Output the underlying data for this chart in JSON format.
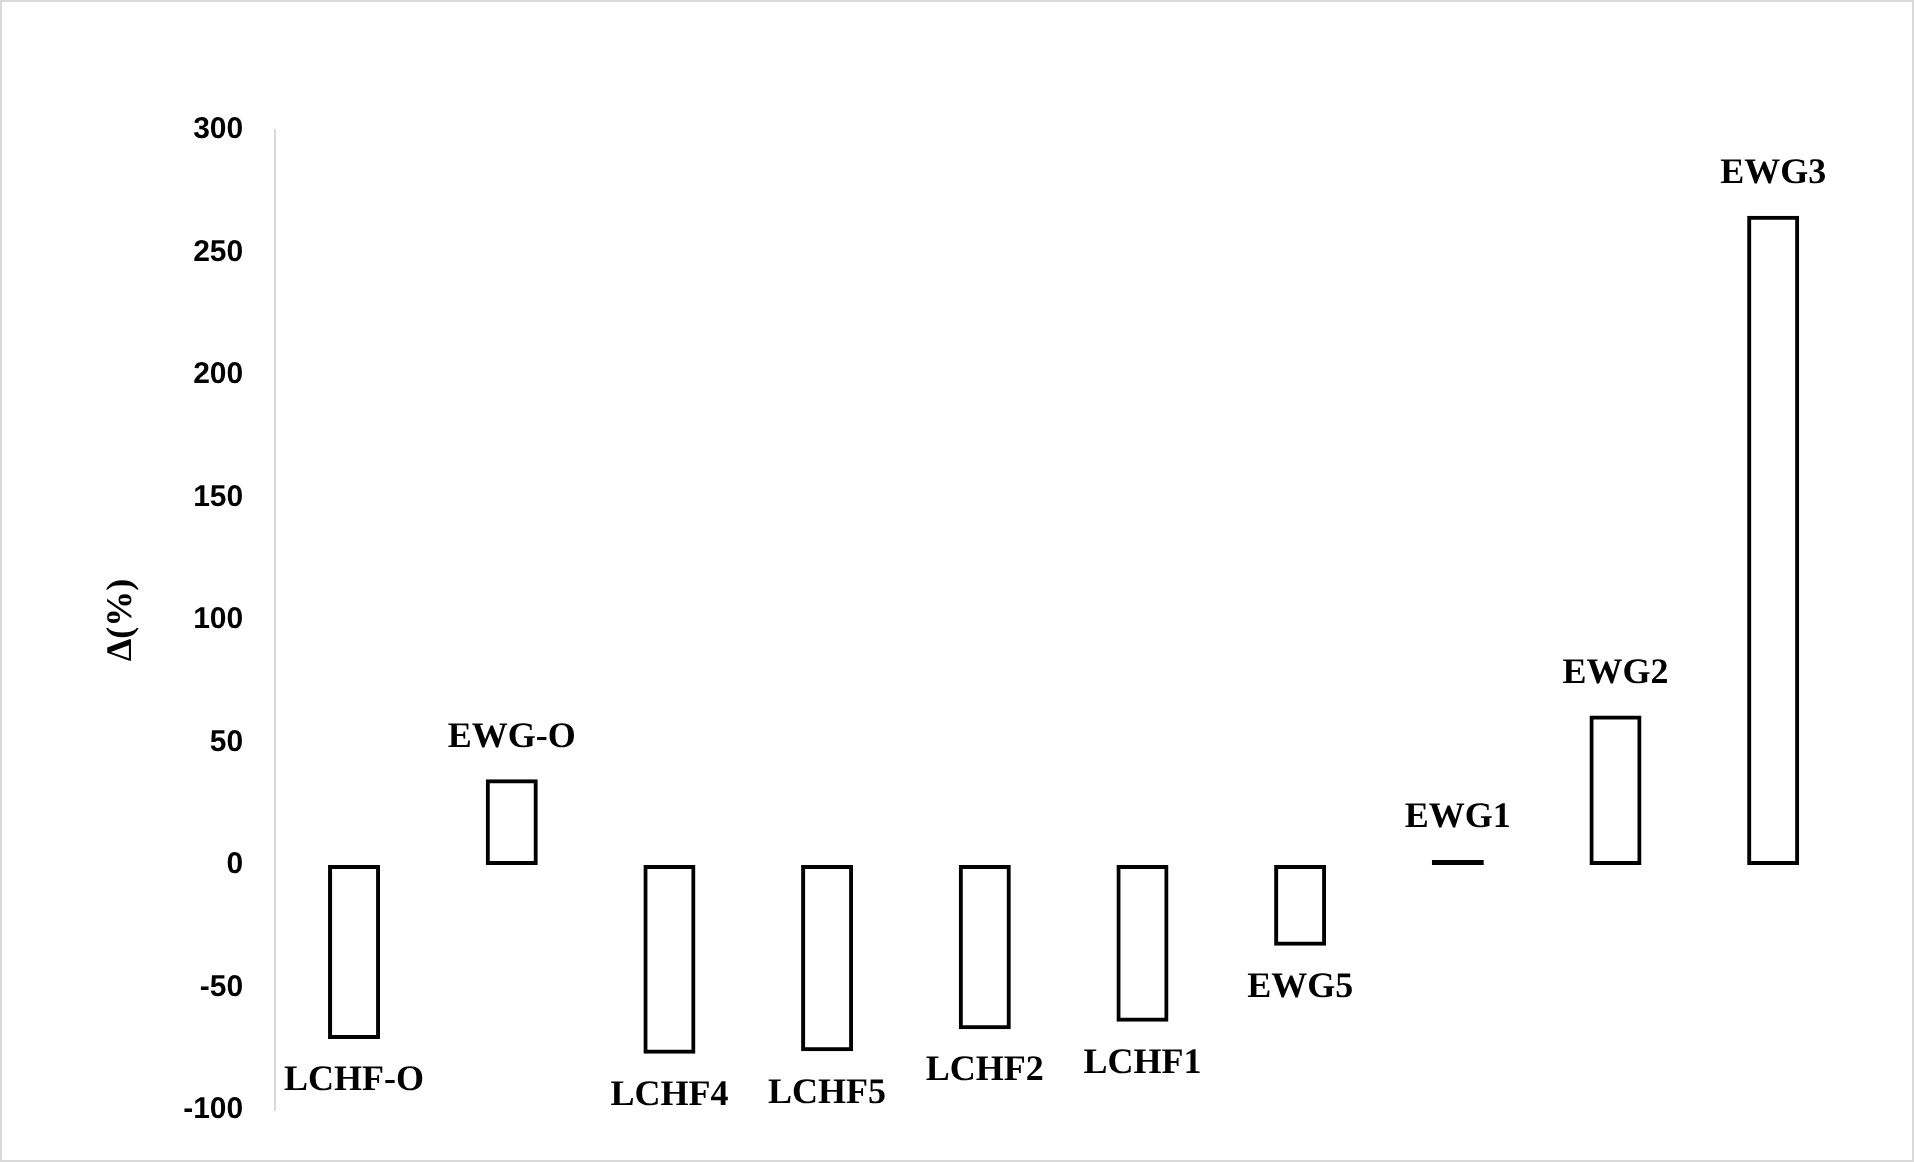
{
  "chart_data": {
    "type": "bar",
    "ylabel": "Δ(%)",
    "categories": [
      "LCHF-O",
      "EWG-O",
      "LCHF4",
      "LCHF5",
      "LCHF2",
      "LCHF1",
      "EWG5",
      "EWG1",
      "EWG2",
      "EWG3"
    ],
    "values": [
      -71,
      35,
      -77,
      -76,
      -67,
      -64,
      -33,
      2,
      61,
      265
    ],
    "color": "#000000",
    "ylim": [
      -100,
      300
    ],
    "yticks": [
      -100,
      -50,
      0,
      50,
      100,
      150,
      200,
      250,
      300
    ],
    "grid": false,
    "legend": false,
    "tick_labels": "y"
  }
}
